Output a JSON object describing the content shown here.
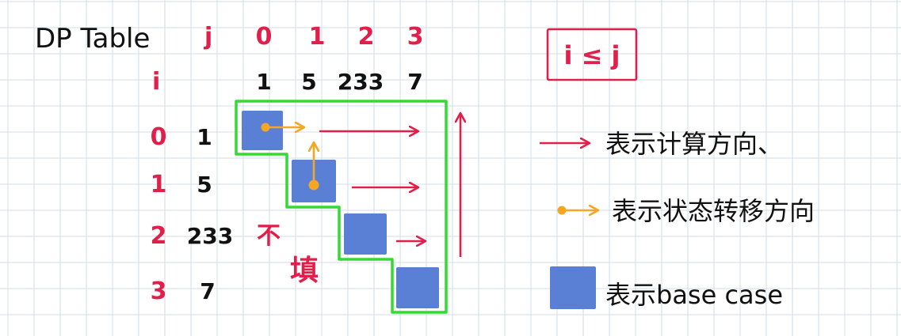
{
  "title": "DP Table",
  "axes": {
    "j_label": "j",
    "i_label": "i"
  },
  "columns": [
    "0",
    "1",
    "2",
    "3"
  ],
  "rows": [
    "0",
    "1",
    "2",
    "3"
  ],
  "values": [
    "1",
    "5",
    "233",
    "7"
  ],
  "not_fill_1": "不",
  "not_fill_2": "填",
  "condition": "i ≤ j",
  "legend": {
    "compute_direction": "表示计算方向、",
    "state_transition": "表示状态转移方向",
    "base_case": "表示base case"
  },
  "colors": {
    "grid": "#d3dde4",
    "red": "#e0204a",
    "orange": "#f5a623",
    "green": "#35d935",
    "blue": "#5a80d6"
  }
}
